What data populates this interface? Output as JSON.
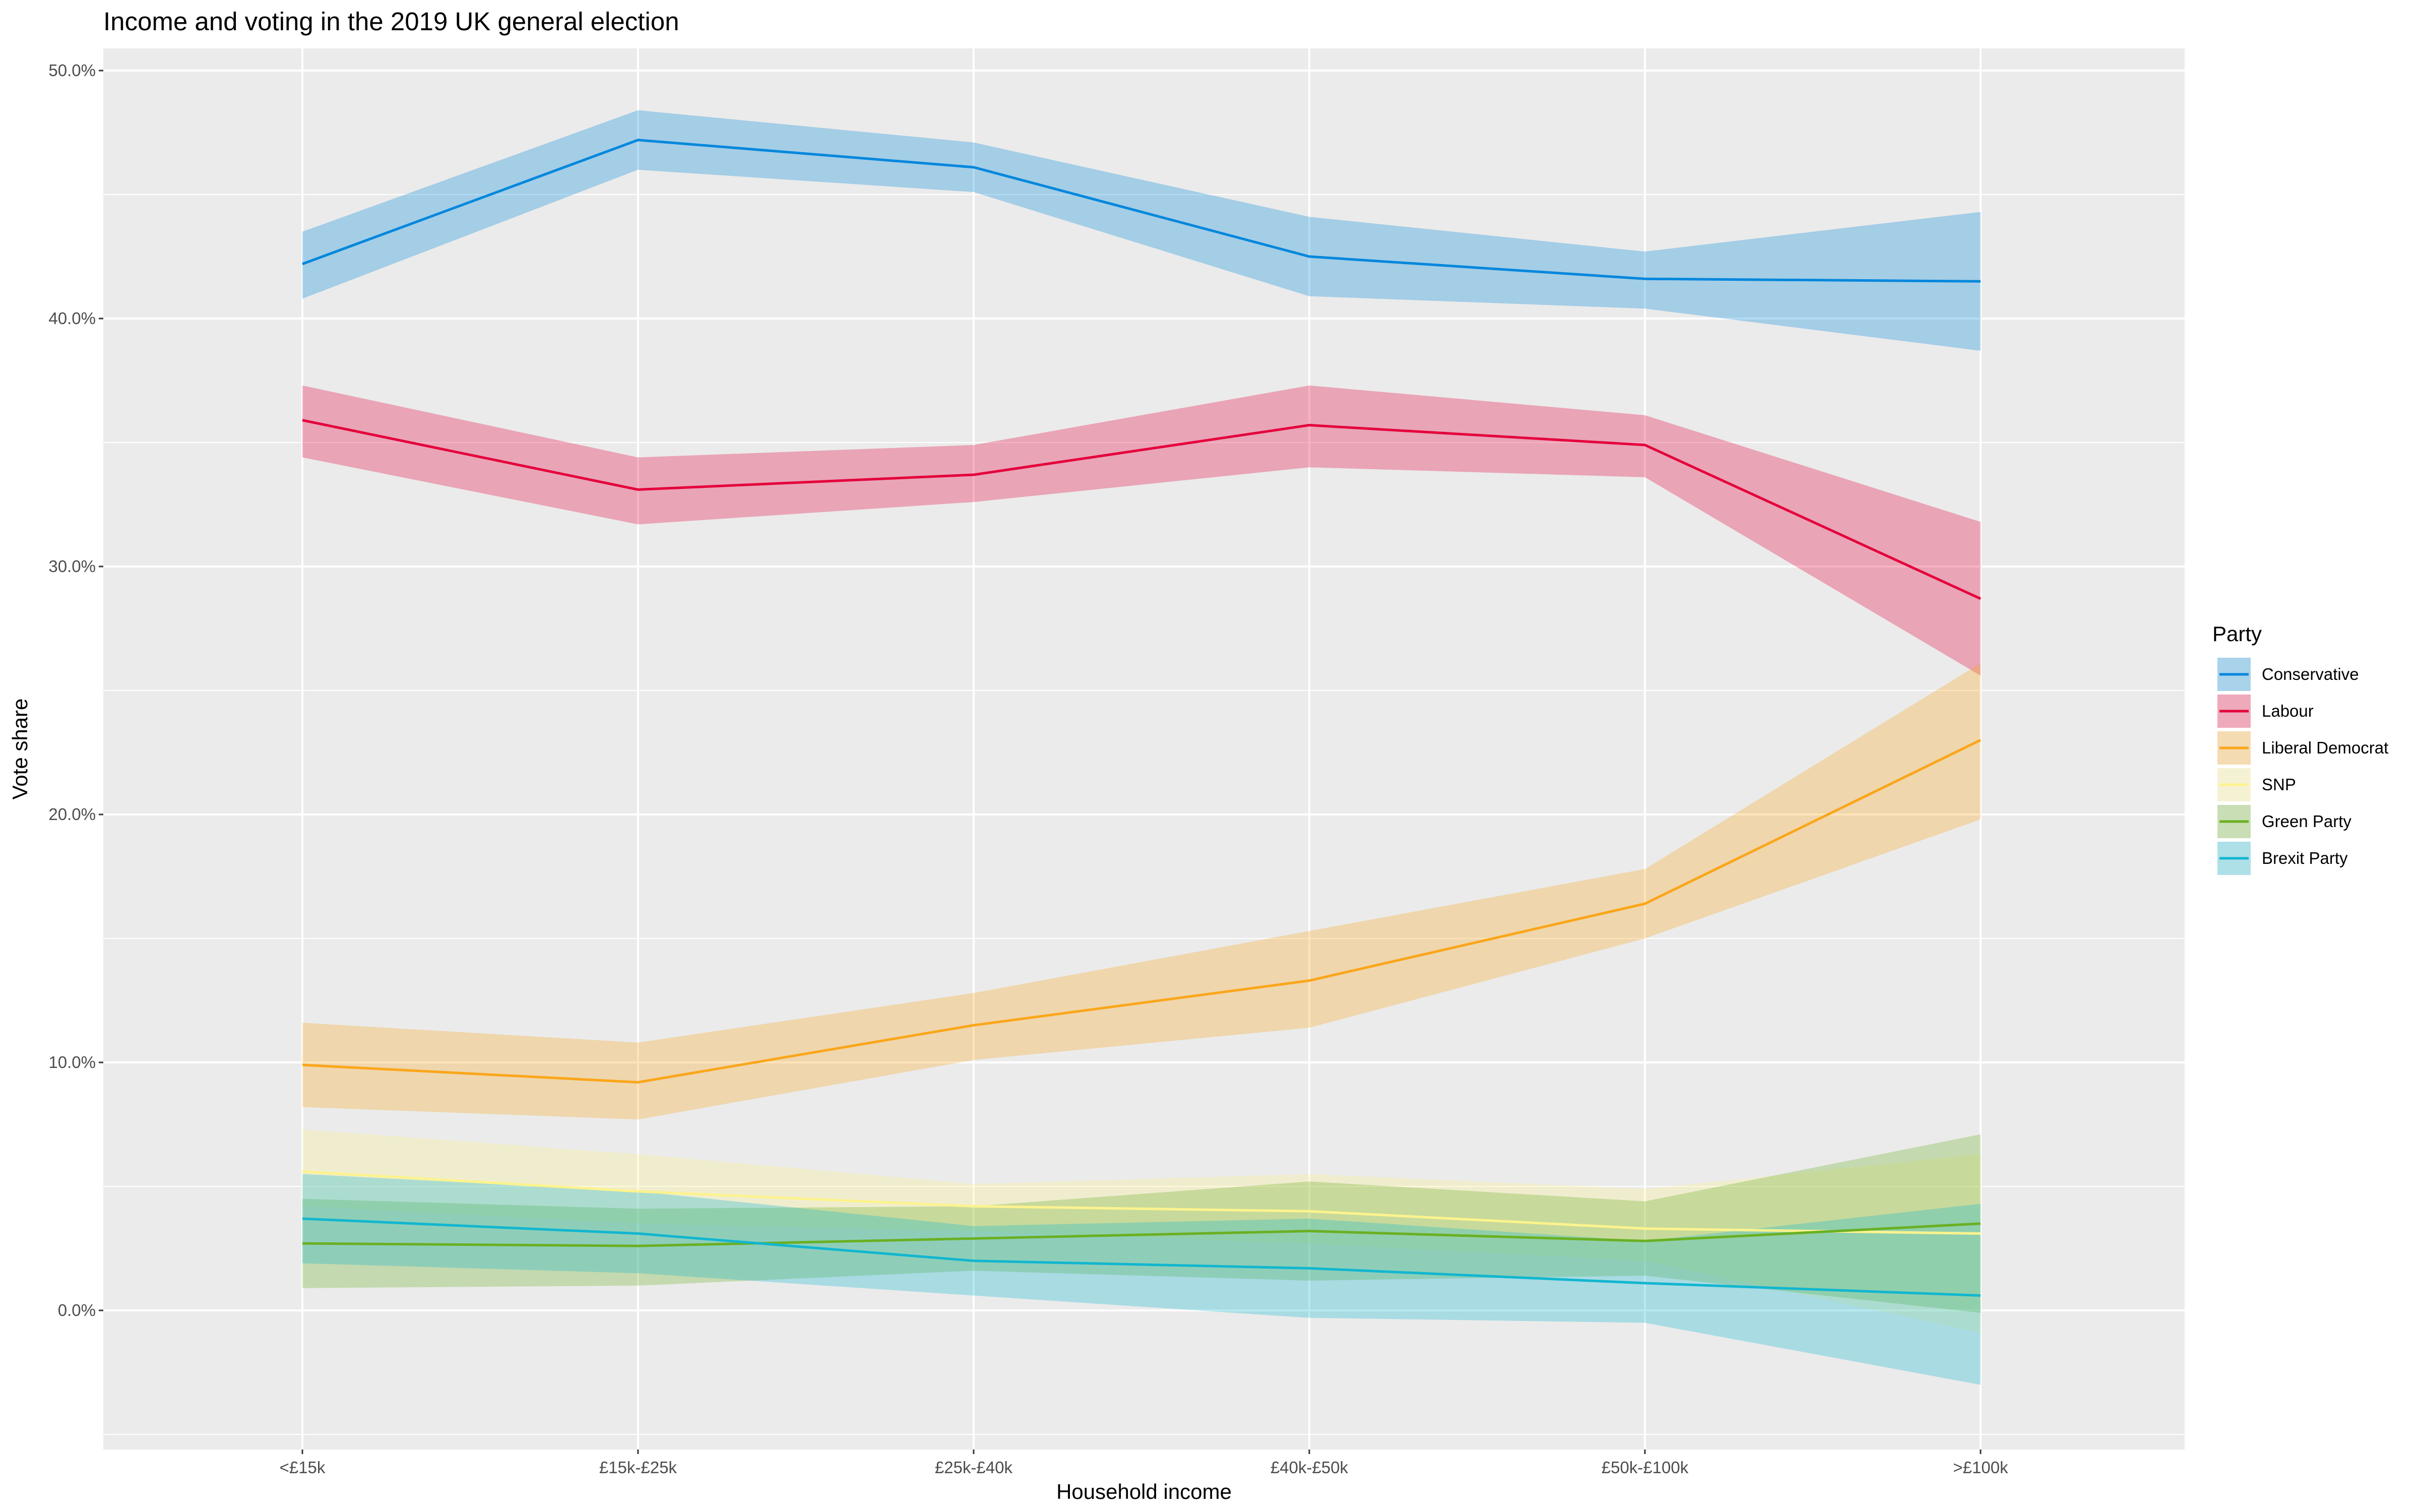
{
  "chart_data": {
    "type": "line",
    "title": "Income and voting in the 2019 UK general election",
    "xlabel": "Household income",
    "ylabel": "Vote share",
    "categories": [
      "<£15k",
      "£15k-£25k",
      "£25k-£40k",
      "£40k-£50k",
      "£50k-£100k",
      ">£100k"
    ],
    "ylim": [
      -5,
      50
    ],
    "yticks": [
      0,
      10,
      20,
      30,
      40,
      50
    ],
    "ytick_labels": [
      "0.0%",
      "10.0%",
      "20.0%",
      "30.0%",
      "40.0%",
      "50.0%"
    ],
    "grid": true,
    "legend": {
      "title": "Party",
      "position": "right"
    },
    "series": [
      {
        "name": "Conservative",
        "color": "#0087DC",
        "values": [
          42.2,
          47.2,
          46.1,
          42.5,
          41.6,
          41.5
        ],
        "lower": [
          40.8,
          46.0,
          45.1,
          40.9,
          40.4,
          38.7
        ],
        "upper": [
          43.5,
          48.4,
          47.1,
          44.1,
          42.7,
          44.3
        ]
      },
      {
        "name": "Labour",
        "color": "#E4003B",
        "values": [
          35.9,
          33.1,
          33.7,
          35.7,
          34.9,
          28.7
        ],
        "lower": [
          34.4,
          31.7,
          32.6,
          34.0,
          33.6,
          25.6
        ],
        "upper": [
          37.3,
          34.4,
          34.9,
          37.3,
          36.1,
          31.8
        ]
      },
      {
        "name": "Liberal Democrat",
        "color": "#FAA61A",
        "values": [
          9.9,
          9.2,
          11.5,
          13.3,
          16.4,
          23.0
        ],
        "lower": [
          8.2,
          7.7,
          10.1,
          11.4,
          15.0,
          19.8
        ],
        "upper": [
          11.6,
          10.8,
          12.8,
          15.3,
          17.8,
          26.1
        ]
      },
      {
        "name": "SNP",
        "color": "#FDF38E",
        "values": [
          5.6,
          4.8,
          4.2,
          4.0,
          3.3,
          3.1
        ],
        "lower": [
          4.2,
          3.5,
          3.2,
          2.7,
          2.0,
          -0.9
        ],
        "upper": [
          7.3,
          6.3,
          5.1,
          5.5,
          4.9,
          6.3
        ]
      },
      {
        "name": "Green Party",
        "color": "#6AB023",
        "values": [
          2.7,
          2.6,
          2.9,
          3.2,
          2.8,
          3.5
        ],
        "lower": [
          0.9,
          1.0,
          1.6,
          1.2,
          1.4,
          -0.1
        ],
        "upper": [
          4.5,
          4.1,
          4.2,
          5.2,
          4.4,
          7.1
        ]
      },
      {
        "name": "Brexit Party",
        "color": "#12B6CF",
        "values": [
          3.7,
          3.1,
          2.0,
          1.7,
          1.1,
          0.6
        ],
        "lower": [
          1.9,
          1.5,
          0.6,
          -0.3,
          -0.5,
          -3.0
        ],
        "upper": [
          5.5,
          4.8,
          3.4,
          3.7,
          2.8,
          4.3
        ]
      }
    ]
  }
}
